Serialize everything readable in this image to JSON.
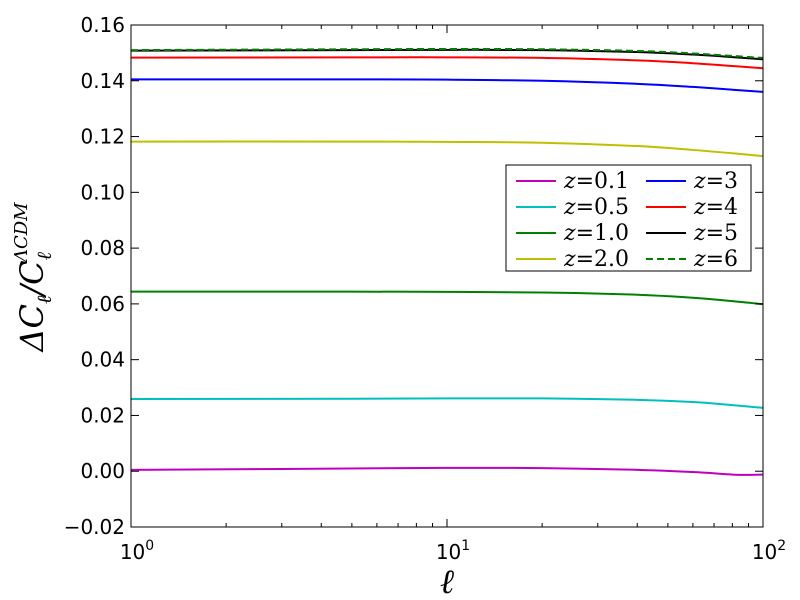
{
  "chart_data": {
    "type": "line",
    "title": "",
    "xlabel": "ℓ",
    "ylabel_main": "ΔC",
    "ylabel_sub1": "ℓ",
    "ylabel_slash": "/C",
    "ylabel_sub2": "ℓ",
    "ylabel_sup": "ΛCDM",
    "xscale": "log",
    "xlim": [
      1,
      100
    ],
    "ylim": [
      -0.02,
      0.16
    ],
    "grid": false,
    "legend_position": "center-right",
    "legend_columns": 2,
    "x_ticks": [
      {
        "value": 1,
        "base": "10",
        "exp": "0"
      },
      {
        "value": 10,
        "base": "10",
        "exp": "1"
      },
      {
        "value": 100,
        "base": "10",
        "exp": "2"
      }
    ],
    "y_ticks": [
      {
        "value": -0.02,
        "label": "−0.02"
      },
      {
        "value": 0.0,
        "label": "0.00"
      },
      {
        "value": 0.02,
        "label": "0.02"
      },
      {
        "value": 0.04,
        "label": "0.04"
      },
      {
        "value": 0.06,
        "label": "0.06"
      },
      {
        "value": 0.08,
        "label": "0.08"
      },
      {
        "value": 0.1,
        "label": "0.10"
      },
      {
        "value": 0.12,
        "label": "0.12"
      },
      {
        "value": 0.14,
        "label": "0.14"
      },
      {
        "value": 0.16,
        "label": "0.16"
      }
    ],
    "series": [
      {
        "name": "z=0.1",
        "name_var": "z",
        "name_val": "0.1",
        "color": "#bf00bf",
        "dash": "solid",
        "points": [
          [
            1,
            0.0005
          ],
          [
            3,
            0.0008
          ],
          [
            10,
            0.0012
          ],
          [
            20,
            0.0011
          ],
          [
            40,
            0.0005
          ],
          [
            60,
            -0.0003
          ],
          [
            80,
            -0.0012
          ],
          [
            90,
            -0.0013
          ],
          [
            100,
            -0.0012
          ]
        ]
      },
      {
        "name": "z=0.5",
        "name_var": "z",
        "name_val": "0.5",
        "color": "#00bfbf",
        "dash": "solid",
        "points": [
          [
            1,
            0.0259
          ],
          [
            5,
            0.026
          ],
          [
            10,
            0.0261
          ],
          [
            20,
            0.0261
          ],
          [
            40,
            0.0256
          ],
          [
            60,
            0.0248
          ],
          [
            80,
            0.0237
          ],
          [
            100,
            0.0227
          ]
        ]
      },
      {
        "name": "z=1.0",
        "name_var": "z",
        "name_val": "1.0",
        "color": "#008000",
        "dash": "solid",
        "points": [
          [
            1,
            0.0644
          ],
          [
            5,
            0.0644
          ],
          [
            10,
            0.0643
          ],
          [
            20,
            0.0641
          ],
          [
            40,
            0.0633
          ],
          [
            60,
            0.0622
          ],
          [
            80,
            0.061
          ],
          [
            100,
            0.0599
          ]
        ]
      },
      {
        "name": "z=2.0",
        "name_var": "z",
        "name_val": "2.0",
        "color": "#bfbf00",
        "dash": "solid",
        "points": [
          [
            1,
            0.1182
          ],
          [
            5,
            0.1182
          ],
          [
            10,
            0.1181
          ],
          [
            20,
            0.1178
          ],
          [
            40,
            0.1166
          ],
          [
            60,
            0.1152
          ],
          [
            80,
            0.114
          ],
          [
            100,
            0.113
          ]
        ]
      },
      {
        "name": "z=3",
        "name_var": "z",
        "name_val": "3",
        "color": "#0000ff",
        "dash": "solid",
        "points": [
          [
            1,
            0.1405
          ],
          [
            5,
            0.1405
          ],
          [
            10,
            0.1404
          ],
          [
            20,
            0.14
          ],
          [
            40,
            0.1389
          ],
          [
            60,
            0.1378
          ],
          [
            80,
            0.1368
          ],
          [
            100,
            0.136
          ]
        ]
      },
      {
        "name": "z=4",
        "name_var": "z",
        "name_val": "4",
        "color": "#ff0000",
        "dash": "solid",
        "points": [
          [
            1,
            0.1483
          ],
          [
            5,
            0.1484
          ],
          [
            10,
            0.1484
          ],
          [
            20,
            0.1482
          ],
          [
            40,
            0.1473
          ],
          [
            60,
            0.1463
          ],
          [
            80,
            0.1453
          ],
          [
            100,
            0.1445
          ]
        ]
      },
      {
        "name": "z=5",
        "name_var": "z",
        "name_val": "5",
        "color": "#000000",
        "dash": "solid",
        "points": [
          [
            1,
            0.1508
          ],
          [
            5,
            0.151
          ],
          [
            10,
            0.1511
          ],
          [
            20,
            0.151
          ],
          [
            40,
            0.1503
          ],
          [
            60,
            0.1494
          ],
          [
            80,
            0.1485
          ],
          [
            100,
            0.1477
          ]
        ]
      },
      {
        "name": "z=6",
        "name_var": "z",
        "name_val": "6",
        "color": "#008000",
        "dash": "dashed",
        "points": [
          [
            1,
            0.151
          ],
          [
            5,
            0.1513
          ],
          [
            10,
            0.1514
          ],
          [
            20,
            0.1513
          ],
          [
            40,
            0.1507
          ],
          [
            60,
            0.1498
          ],
          [
            80,
            0.1489
          ],
          [
            100,
            0.1482
          ]
        ]
      }
    ]
  }
}
